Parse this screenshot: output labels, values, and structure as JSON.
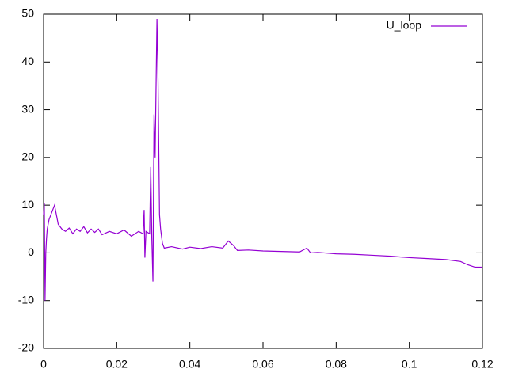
{
  "chart_data": {
    "type": "line",
    "x": [
      0,
      0.0002,
      0.0004,
      0.0006,
      0.0008,
      0.001,
      0.0015,
      0.002,
      0.0025,
      0.003,
      0.0035,
      0.004,
      0.005,
      0.006,
      0.007,
      0.008,
      0.009,
      0.01,
      0.011,
      0.012,
      0.013,
      0.014,
      0.015,
      0.016,
      0.018,
      0.02,
      0.022,
      0.024,
      0.026,
      0.0272,
      0.0275,
      0.0277,
      0.028,
      0.029,
      0.0293,
      0.0296,
      0.0299,
      0.0302,
      0.0305,
      0.031,
      0.0313,
      0.0317,
      0.032,
      0.0325,
      0.033,
      0.035,
      0.038,
      0.04,
      0.043,
      0.046,
      0.049,
      0.0505,
      0.052,
      0.053,
      0.056,
      0.06,
      0.065,
      0.07,
      0.072,
      0.073,
      0.075,
      0.08,
      0.085,
      0.09,
      0.095,
      0.1,
      0.105,
      0.11,
      0.114,
      0.116,
      0.118,
      0.12
    ],
    "series": [
      {
        "name": "U_loop",
        "color": "#9400d3",
        "values": [
          8,
          10.5,
          -10,
          0,
          3,
          5,
          7,
          8,
          9,
          10,
          8,
          6,
          5,
          4.5,
          5.2,
          4,
          5,
          4.5,
          5.5,
          4.2,
          5,
          4.3,
          5,
          3.8,
          4.5,
          4,
          4.8,
          3.5,
          4.5,
          4,
          9,
          -1,
          4.5,
          4,
          18,
          3,
          -6,
          29,
          20,
          49,
          36,
          8,
          5,
          2,
          1,
          1.3,
          0.8,
          1.2,
          0.9,
          1.3,
          1,
          2.5,
          1.5,
          0.5,
          0.6,
          0.4,
          0.3,
          0.2,
          1,
          0,
          0.1,
          -0.2,
          -0.3,
          -0.5,
          -0.7,
          -1,
          -1.2,
          -1.4,
          -1.8,
          -2.5,
          -3,
          -3
        ]
      }
    ],
    "xlim": [
      0,
      0.12
    ],
    "xticks": [
      0,
      0.02,
      0.04,
      0.06,
      0.08,
      0.1,
      0.12
    ],
    "ylim": [
      -20,
      50
    ],
    "yticks": [
      -20,
      -10,
      0,
      10,
      20,
      30,
      40,
      50
    ],
    "legend": "top right",
    "grid": false
  }
}
